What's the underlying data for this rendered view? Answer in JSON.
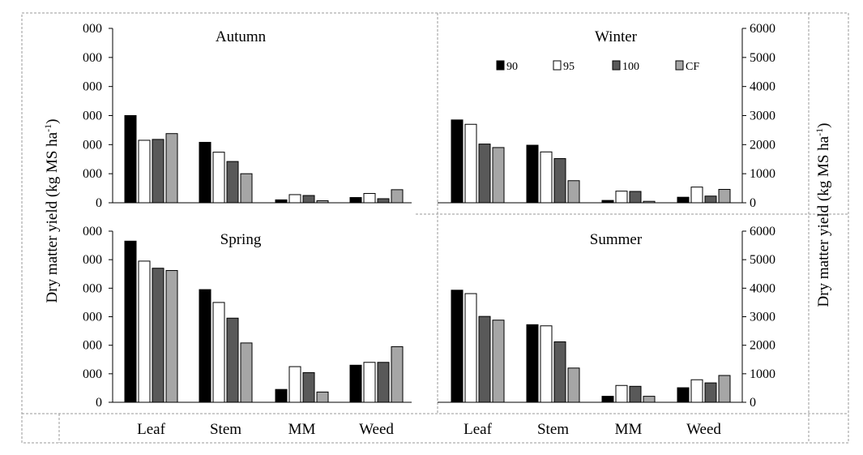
{
  "chart_data": {
    "type": "bar",
    "ylabel_left": "Dry matter yield (kg MS ha",
    "ylabel_right": "Dry matter yield (kg MS ha",
    "ylabel_superscript": "-1",
    "ylabel_suffix": ")",
    "ylim": [
      0,
      6000
    ],
    "left_ticks": [
      "0",
      "000",
      "000",
      "000",
      "000",
      "000",
      "000"
    ],
    "right_ticks": [
      "0",
      "1000",
      "2000",
      "3000",
      "4000",
      "5000",
      "6000"
    ],
    "categories": [
      "Leaf",
      "Stem",
      "MM",
      "Weed"
    ],
    "legend": [
      {
        "name": "90",
        "color": "#000000"
      },
      {
        "name": "95",
        "color": "#ffffff"
      },
      {
        "name": "100",
        "color": "#595959"
      },
      {
        "name": "CF",
        "color": "#a6a6a6"
      }
    ],
    "panels": [
      {
        "title": "Autumn",
        "values": [
          [
            3000,
            2150,
            2180,
            2380
          ],
          [
            2080,
            1740,
            1420,
            1000
          ],
          [
            100,
            280,
            250,
            70
          ],
          [
            180,
            320,
            140,
            450
          ]
        ]
      },
      {
        "title": "Winter",
        "values": [
          [
            2850,
            2700,
            2020,
            1900
          ],
          [
            1980,
            1750,
            1520,
            760
          ],
          [
            80,
            400,
            390,
            50
          ],
          [
            190,
            540,
            230,
            460
          ]
        ]
      },
      {
        "title": "Spring",
        "values": [
          [
            5650,
            4950,
            4700,
            4620
          ],
          [
            3950,
            3500,
            2950,
            2080
          ],
          [
            450,
            1250,
            1040,
            360
          ],
          [
            1300,
            1400,
            1400,
            1950
          ]
        ]
      },
      {
        "title": "Summer",
        "values": [
          [
            3930,
            3810,
            3010,
            2880
          ],
          [
            2720,
            2680,
            2120,
            1200
          ],
          [
            210,
            590,
            560,
            210
          ],
          [
            510,
            790,
            680,
            940
          ]
        ]
      }
    ]
  }
}
